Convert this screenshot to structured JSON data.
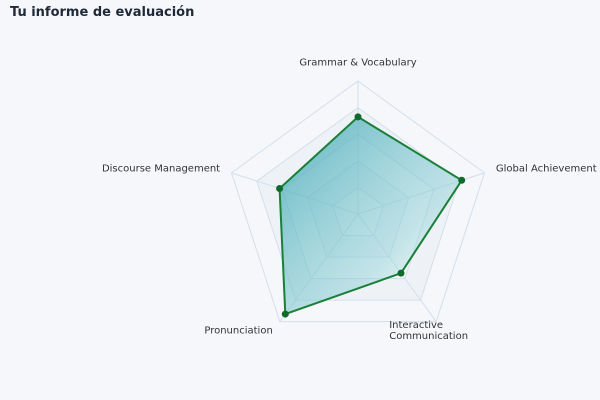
{
  "title": "Tu informe de evaluación",
  "chart_data": {
    "type": "radar",
    "categories": [
      "Grammar & Vocabulary",
      "Global Achievement",
      "Interactive Communication",
      "Pronunciation",
      "Discourse Management"
    ],
    "values": [
      73,
      82,
      55,
      93,
      62
    ],
    "color": "#1a7f37",
    "rlim": [
      0,
      100
    ],
    "rticks": [
      20,
      40,
      60,
      80,
      100
    ],
    "grid": true
  }
}
